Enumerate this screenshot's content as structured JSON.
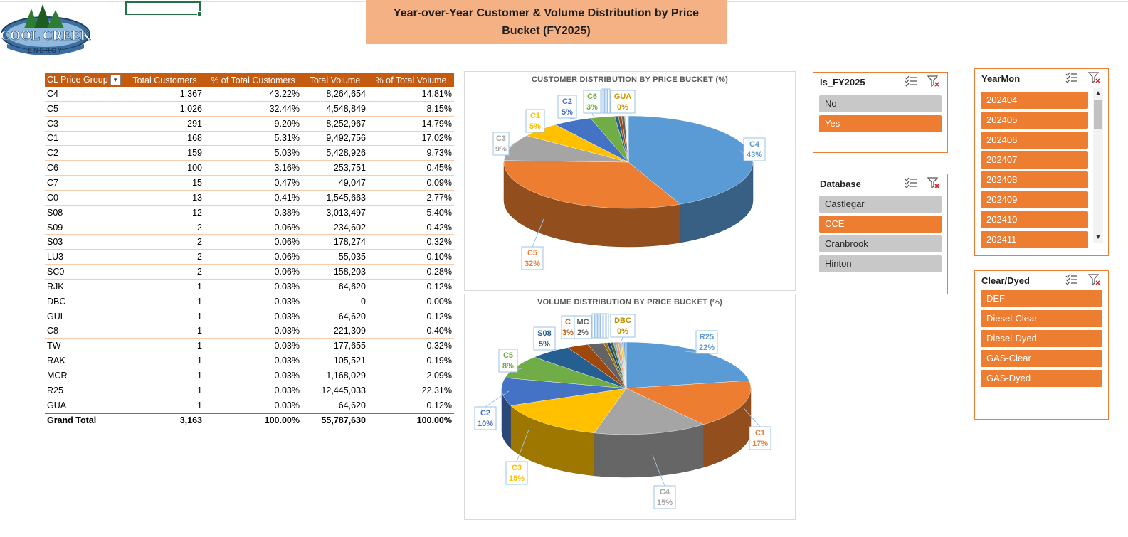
{
  "title": "Year-over-Year Customer & Volume Distribution by Price Bucket (FY2025)",
  "logo": {
    "line1": "COOL CREEK",
    "line2": "ENERGY"
  },
  "pivot": {
    "headers": [
      "CL Price Group",
      "Total Customers",
      "% of Total Customers",
      "Total Volume",
      "% of Total Volume"
    ],
    "rows": [
      [
        "C4",
        "1,367",
        "43.22%",
        "8,264,654",
        "14.81%"
      ],
      [
        "C5",
        "1,026",
        "32.44%",
        "4,548,849",
        "8.15%"
      ],
      [
        "C3",
        "291",
        "9.20%",
        "8,252,967",
        "14.79%"
      ],
      [
        "C1",
        "168",
        "5.31%",
        "9,492,756",
        "17.02%"
      ],
      [
        "C2",
        "159",
        "5.03%",
        "5,428,926",
        "9.73%"
      ],
      [
        "C6",
        "100",
        "3.16%",
        "253,751",
        "0.45%"
      ],
      [
        "C7",
        "15",
        "0.47%",
        "49,047",
        "0.09%"
      ],
      [
        "C0",
        "13",
        "0.41%",
        "1,545,663",
        "2.77%"
      ],
      [
        "S08",
        "12",
        "0.38%",
        "3,013,497",
        "5.40%"
      ],
      [
        "S09",
        "2",
        "0.06%",
        "234,602",
        "0.42%"
      ],
      [
        "S03",
        "2",
        "0.06%",
        "178,274",
        "0.32%"
      ],
      [
        "LU3",
        "2",
        "0.06%",
        "55,035",
        "0.10%"
      ],
      [
        "SC0",
        "2",
        "0.06%",
        "158,203",
        "0.28%"
      ],
      [
        "RJK",
        "1",
        "0.03%",
        "64,620",
        "0.12%"
      ],
      [
        "DBC",
        "1",
        "0.03%",
        "0",
        "0.00%"
      ],
      [
        "GUL",
        "1",
        "0.03%",
        "64,620",
        "0.12%"
      ],
      [
        "C8",
        "1",
        "0.03%",
        "221,309",
        "0.40%"
      ],
      [
        "TW",
        "1",
        "0.03%",
        "177,655",
        "0.32%"
      ],
      [
        "RAK",
        "1",
        "0.03%",
        "105,521",
        "0.19%"
      ],
      [
        "MCR",
        "1",
        "0.03%",
        "1,168,029",
        "2.09%"
      ],
      [
        "R25",
        "1",
        "0.03%",
        "12,445,033",
        "22.31%"
      ],
      [
        "GUA",
        "1",
        "0.03%",
        "64,620",
        "0.12%"
      ]
    ],
    "total": [
      "Grand Total",
      "3,163",
      "100.00%",
      "55,787,630",
      "100.00%"
    ]
  },
  "chart_data": [
    {
      "type": "pie",
      "title": "CUSTOMER DISTRIBUTION BY PRICE BUCKET (%)",
      "categories": [
        "C4",
        "C5",
        "C3",
        "C1",
        "C2",
        "C6",
        "C7",
        "C0",
        "S08",
        "S09",
        "S03",
        "LU3",
        "SC0",
        "RJK",
        "DBC",
        "GUL",
        "C8",
        "TW",
        "RAK",
        "MCR",
        "R25",
        "GUA"
      ],
      "values": [
        43.22,
        32.44,
        9.2,
        5.31,
        5.03,
        3.16,
        0.47,
        0.41,
        0.38,
        0.06,
        0.06,
        0.06,
        0.06,
        0.03,
        0.03,
        0.03,
        0.03,
        0.03,
        0.03,
        0.03,
        0.03,
        0.03
      ],
      "labels": [
        {
          "name": "C4",
          "pct": "43%"
        },
        {
          "name": "C5",
          "pct": "32%"
        },
        {
          "name": "C3",
          "pct": "9%"
        },
        {
          "name": "C1",
          "pct": "5%"
        },
        {
          "name": "C2",
          "pct": "5%"
        },
        {
          "name": "C6",
          "pct": "3%"
        },
        {
          "name": "GUA",
          "pct": "0%"
        }
      ]
    },
    {
      "type": "pie",
      "title": "VOLUME DISTRIBUTION BY PRICE BUCKET (%)",
      "categories": [
        "R25",
        "C1",
        "C4",
        "C3",
        "C2",
        "C5",
        "S08",
        "C0",
        "MCR",
        "C6",
        "S09",
        "C8",
        "S03",
        "TW",
        "SC0",
        "RAK",
        "RJK",
        "GUL",
        "GUA",
        "LU3",
        "C7",
        "DBC"
      ],
      "values": [
        22.31,
        17.02,
        14.81,
        14.79,
        9.73,
        8.15,
        5.4,
        2.77,
        2.09,
        0.45,
        0.42,
        0.4,
        0.32,
        0.32,
        0.28,
        0.19,
        0.12,
        0.12,
        0.12,
        0.1,
        0.09,
        0.0
      ],
      "labels": [
        {
          "name": "R25",
          "pct": "22%"
        },
        {
          "name": "C1",
          "pct": "17%"
        },
        {
          "name": "C4",
          "pct": "15%"
        },
        {
          "name": "C3",
          "pct": "15%"
        },
        {
          "name": "C2",
          "pct": "10%"
        },
        {
          "name": "C5",
          "pct": "8%"
        },
        {
          "name": "S08",
          "pct": "5%"
        },
        {
          "name": "C",
          "pct": "3%"
        },
        {
          "name": "MC",
          "pct": "2%"
        },
        {
          "name": "DBC",
          "pct": "0%"
        }
      ]
    }
  ],
  "colors": {
    "blue": "#5b9bd5",
    "orange": "#ed7d31",
    "gray": "#a5a5a5",
    "gold": "#ffc000",
    "darkblue": "#4472c4",
    "green": "#70ad47",
    "navy": "#255e91",
    "brown": "#9e480e",
    "dkgray": "#636363",
    "olive": "#997300",
    "slate": "#264478",
    "dkgreen": "#43682b",
    "header": "#c55a11",
    "slicerOn": "#ed7d31",
    "slicerOff": "#c8c8c8",
    "title": "#f4b183"
  },
  "slicers": {
    "is_fy": {
      "title": "Is_FY2025",
      "items": [
        {
          "label": "No",
          "on": false
        },
        {
          "label": "Yes",
          "on": true
        }
      ]
    },
    "database": {
      "title": "Database",
      "items": [
        {
          "label": "Castlegar",
          "on": false
        },
        {
          "label": "CCE",
          "on": true
        },
        {
          "label": "Cranbrook",
          "on": false
        },
        {
          "label": "Hinton",
          "on": false
        }
      ]
    },
    "yearmon": {
      "title": "YearMon",
      "items": [
        {
          "label": "202404",
          "on": true
        },
        {
          "label": "202405",
          "on": true
        },
        {
          "label": "202406",
          "on": true
        },
        {
          "label": "202407",
          "on": true
        },
        {
          "label": "202408",
          "on": true
        },
        {
          "label": "202409",
          "on": true
        },
        {
          "label": "202410",
          "on": true
        },
        {
          "label": "202411",
          "on": true
        }
      ]
    },
    "cleardyed": {
      "title": "Clear/Dyed",
      "items": [
        {
          "label": "DEF",
          "on": true
        },
        {
          "label": "Diesel-Clear",
          "on": true
        },
        {
          "label": "Diesel-Dyed",
          "on": true
        },
        {
          "label": "GAS-Clear",
          "on": true
        },
        {
          "label": "GAS-Dyed",
          "on": true
        }
      ]
    }
  }
}
